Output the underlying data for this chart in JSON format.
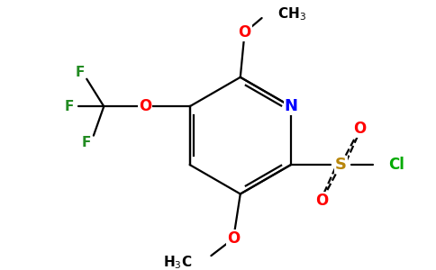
{
  "bg_color": "#ffffff",
  "atom_colors": {
    "C": "#000000",
    "N": "#0000ff",
    "O": "#ff0000",
    "F": "#228B22",
    "S": "#b8860b",
    "Cl": "#00aa00"
  },
  "bond_color": "#000000",
  "bond_width": 1.6
}
